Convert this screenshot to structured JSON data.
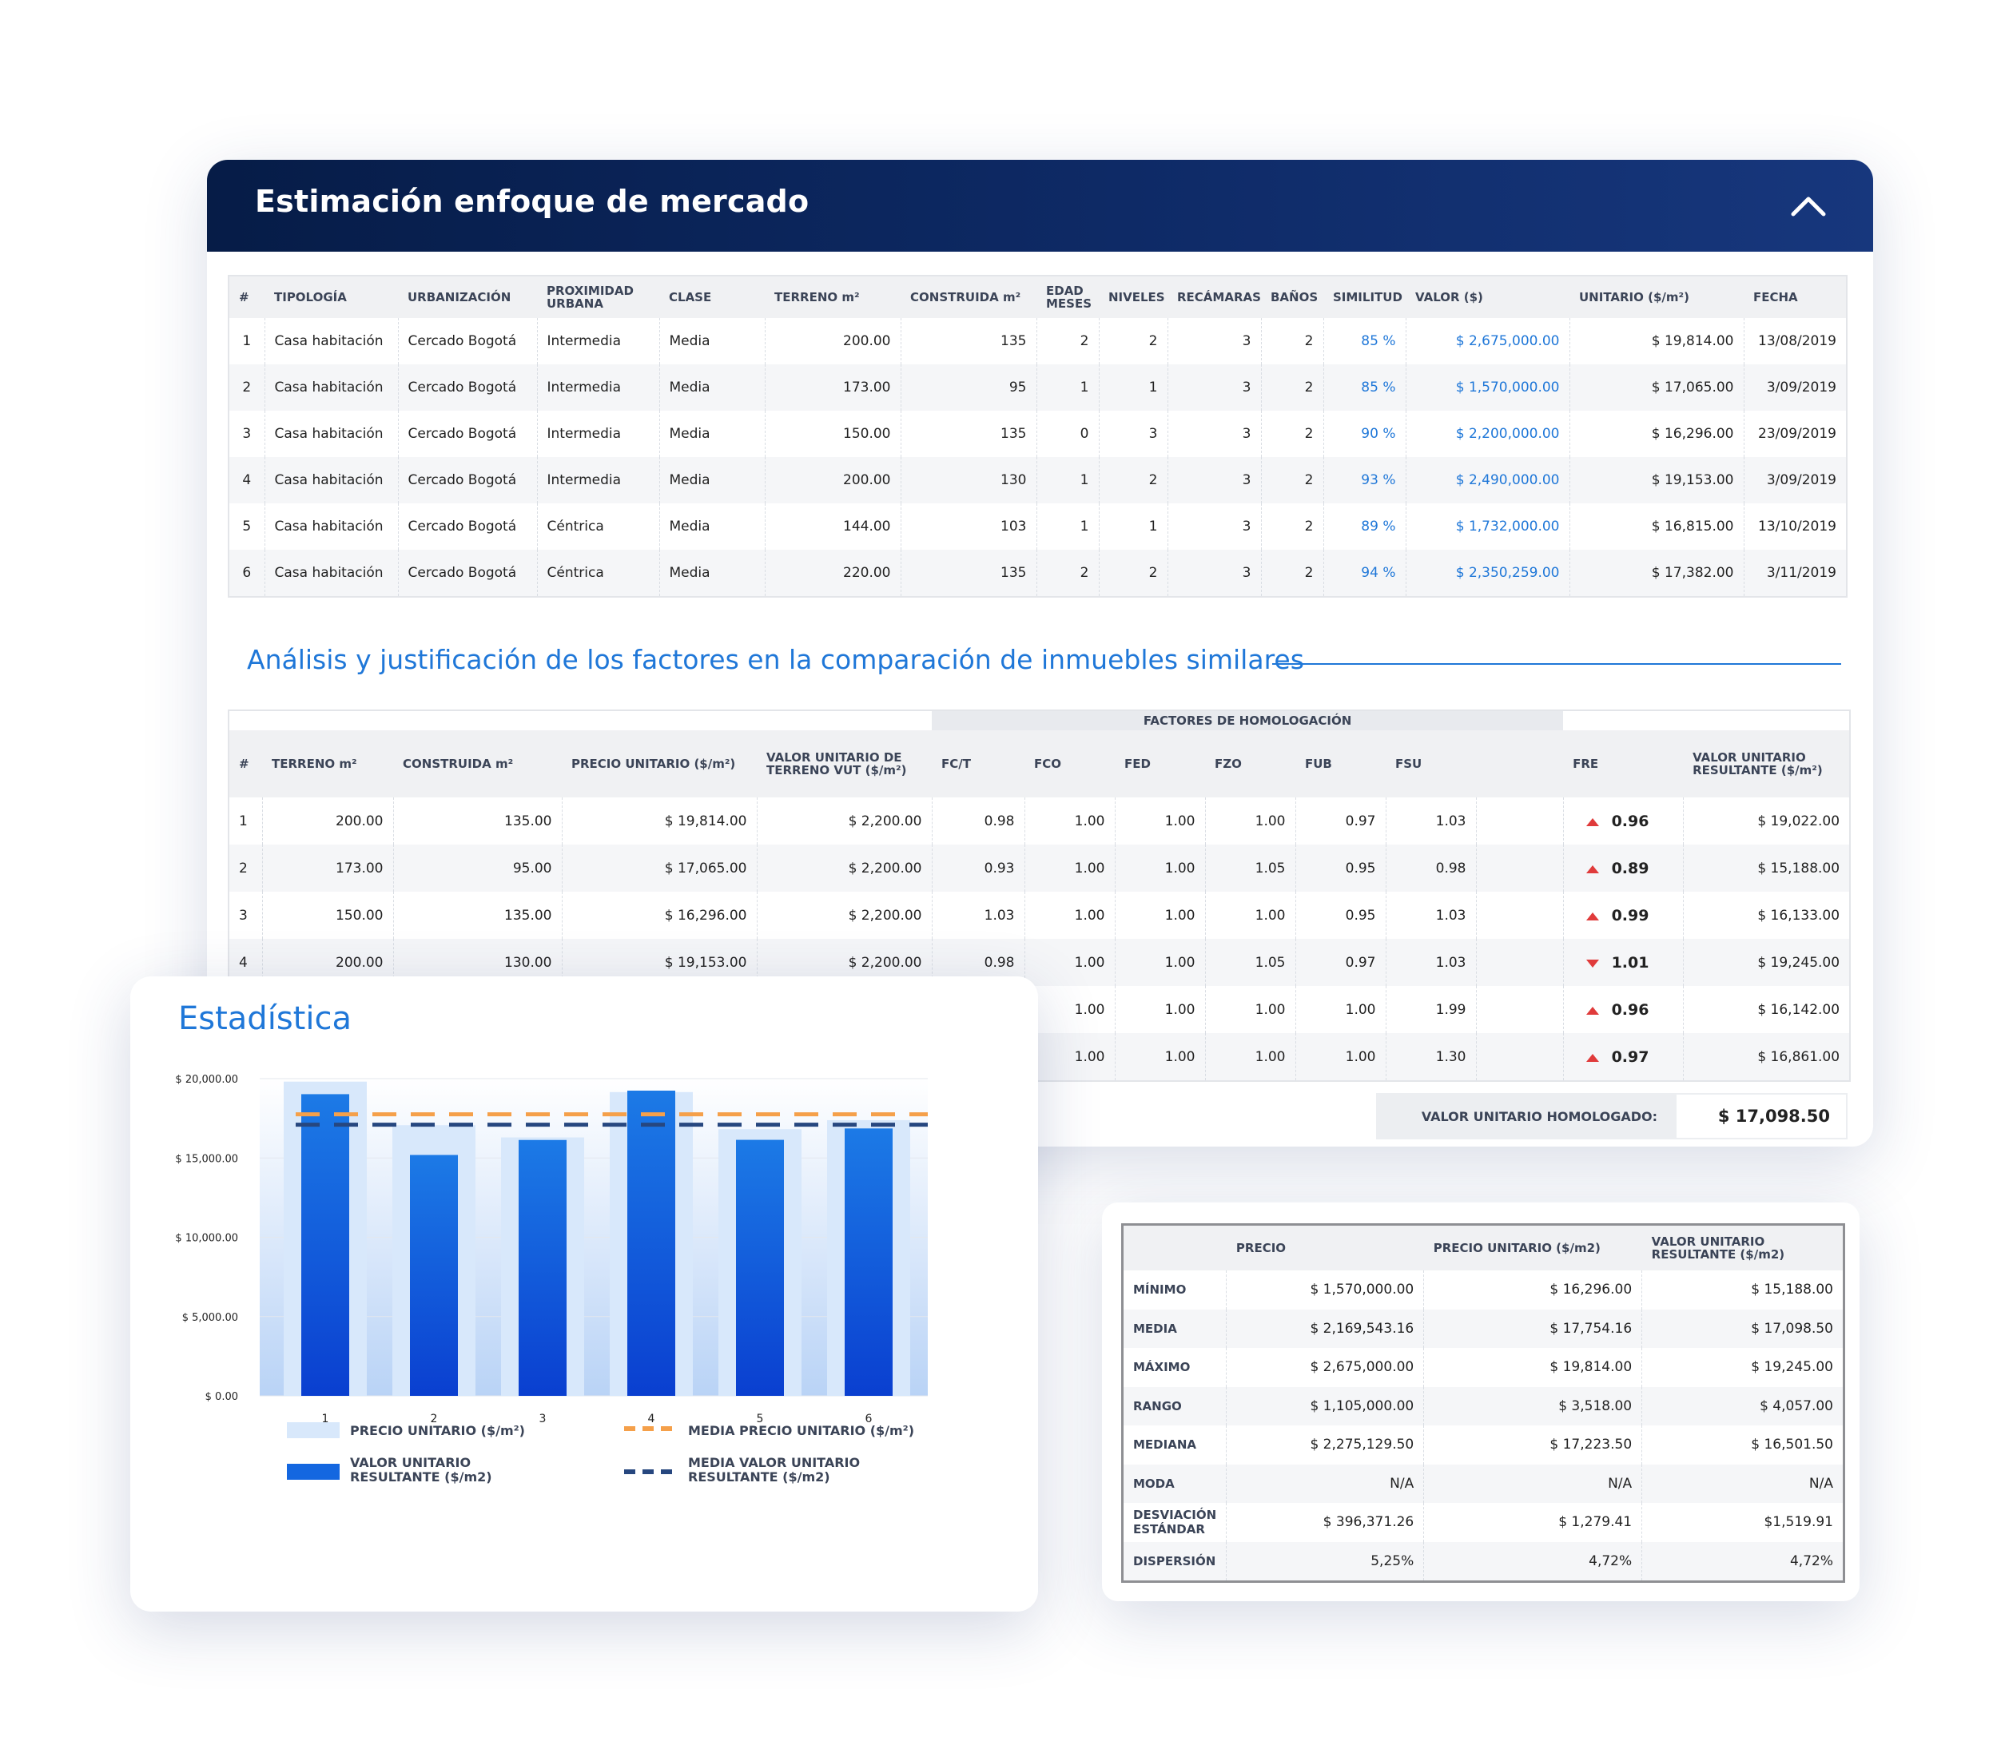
{
  "market": {
    "title": "Estimación enfoque de mercado",
    "columns": [
      "#",
      "TIPOLOGÍA",
      "URBANIZACIÓN",
      "PROXIMIDAD URBANA",
      "CLASE",
      "TERRENO  m²",
      "CONSTRUIDA m²",
      "EDAD MESES",
      "NIVELES",
      "RECÁMARAS",
      "BAÑOS",
      "SIMILITUD",
      "VALOR ($)",
      "UNITARIO ($/m²)",
      "FECHA"
    ],
    "rows": [
      [
        "1",
        "Casa habitación",
        "Cercado Bogotá",
        "Intermedia",
        "Media",
        "200.00",
        "135",
        "2",
        "2",
        "3",
        "2",
        "85 %",
        "$ 2,675,000.00",
        "$ 19,814.00",
        "13/08/2019"
      ],
      [
        "2",
        "Casa habitación",
        "Cercado Bogotá",
        "Intermedia",
        "Media",
        "173.00",
        "95",
        "1",
        "1",
        "3",
        "2",
        "85 %",
        "$ 1,570,000.00",
        "$ 17,065.00",
        "3/09/2019"
      ],
      [
        "3",
        "Casa habitación",
        "Cercado Bogotá",
        "Intermedia",
        "Media",
        "150.00",
        "135",
        "0",
        "3",
        "3",
        "2",
        "90 %",
        "$ 2,200,000.00",
        "$ 16,296.00",
        "23/09/2019"
      ],
      [
        "4",
        "Casa habitación",
        "Cercado Bogotá",
        "Intermedia",
        "Media",
        "200.00",
        "130",
        "1",
        "2",
        "3",
        "2",
        "93 %",
        "$ 2,490,000.00",
        "$ 19,153.00",
        "3/09/2019"
      ],
      [
        "5",
        "Casa habitación",
        "Cercado Bogotá",
        "Céntrica",
        "Media",
        "144.00",
        "103",
        "1",
        "1",
        "3",
        "2",
        "89 %",
        "$ 1,732,000.00",
        "$ 16,815.00",
        "13/10/2019"
      ],
      [
        "6",
        "Casa habitación",
        "Cercado Bogotá",
        "Céntrica",
        "Media",
        "220.00",
        "135",
        "2",
        "2",
        "3",
        "2",
        "94 %",
        "$ 2,350,259.00",
        "$ 17,382.00",
        "3/11/2019"
      ]
    ]
  },
  "analysis": {
    "title": "Análisis y justificación de los factores en la comparación de inmuebles similares",
    "group_header": "FACTORES DE HOMOLOGACIÓN",
    "columns": [
      "#",
      "TERRENO  m²",
      "CONSTRUIDA m²",
      "PRECIO UNITARIO ($/m²)",
      "VALOR UNITARIO DE TERRENO VUT ($/m²)",
      "FC/T",
      "FCO",
      "FED",
      "FZO",
      "FUB",
      "FSU",
      "",
      "FRE",
      "VALOR UNITARIO RESULTANTE ($/m²)"
    ],
    "rows": [
      {
        "cells": [
          "1",
          "200.00",
          "135.00",
          "$ 19,814.00",
          "$ 2,200.00",
          "0.98",
          "1.00",
          "1.00",
          "1.00",
          "0.97",
          "1.03"
        ],
        "fre_dir": "up",
        "fre": "0.96",
        "result": "$ 19,022.00"
      },
      {
        "cells": [
          "2",
          "173.00",
          "95.00",
          "$ 17,065.00",
          "$ 2,200.00",
          "0.93",
          "1.00",
          "1.00",
          "1.05",
          "0.95",
          "0.98"
        ],
        "fre_dir": "up",
        "fre": "0.89",
        "result": "$ 15,188.00"
      },
      {
        "cells": [
          "3",
          "150.00",
          "135.00",
          "$ 16,296.00",
          "$ 2,200.00",
          "1.03",
          "1.00",
          "1.00",
          "1.00",
          "0.95",
          "1.03"
        ],
        "fre_dir": "up",
        "fre": "0.99",
        "result": "$ 16,133.00"
      },
      {
        "cells": [
          "4",
          "200.00",
          "130.00",
          "$ 19,153.00",
          "$ 2,200.00",
          "0.98",
          "1.00",
          "1.00",
          "1.05",
          "0.97",
          "1.03"
        ],
        "fre_dir": "down",
        "fre": "1.01",
        "result": "$ 19,245.00"
      },
      {
        "cells": [
          "",
          "",
          "",
          "",
          "",
          "",
          "1.00",
          "1.00",
          "1.00",
          "1.00",
          "1.99"
        ],
        "fre_dir": "up",
        "fre": "0.96",
        "result": "$ 16,142.00"
      },
      {
        "cells": [
          "",
          "",
          "",
          "",
          "",
          "",
          "1.00",
          "1.00",
          "1.00",
          "1.00",
          "1.30"
        ],
        "fre_dir": "up",
        "fre": "0.97",
        "result": "$ 16,861.00"
      }
    ],
    "homologated_label": "VALOR UNITARIO HOMOLOGADO:",
    "homologated_value": "$ 17,098.50"
  },
  "stats": {
    "title": "Estadística",
    "legend": {
      "price": "PRECIO UNITARIO ($/m²)",
      "mean_price": "MEDIA PRECIO UNITARIO ($/m²)",
      "result": "VALOR UNITARIO RESULTANTE ($/m2)",
      "mean_result": "MEDIA VALOR UNITARIO RESULTANTE ($/m2)"
    }
  },
  "chart_data": {
    "type": "bar",
    "categories": [
      "1",
      "2",
      "3",
      "4",
      "5",
      "6"
    ],
    "series": [
      {
        "name": "PRECIO UNITARIO ($/m²)",
        "values": [
          19814,
          17065,
          16296,
          19153,
          16815,
          17382
        ],
        "color": "#d8e8fb"
      },
      {
        "name": "VALOR UNITARIO RESULTANTE ($/m2)",
        "values": [
          19022,
          15188,
          16133,
          19245,
          16142,
          16861
        ],
        "color": "#1467e0"
      }
    ],
    "reference_lines": [
      {
        "name": "MEDIA PRECIO UNITARIO ($/m²)",
        "value": 17754.16,
        "color": "#f5a04a",
        "style": "dashed"
      },
      {
        "name": "MEDIA VALOR UNITARIO RESULTANTE ($/m2)",
        "value": 17098.5,
        "color": "#27477f",
        "style": "dashed"
      }
    ],
    "yticks": [
      "$ 0.00",
      "$ 5,000.00",
      "$ 10,000.00",
      "$ 15,000.00",
      "$ 20,000.00"
    ],
    "ylim": [
      0,
      20000
    ],
    "grid": true,
    "legend_position": "bottom"
  },
  "summary": {
    "columns": [
      "",
      "PRECIO",
      "PRECIO UNITARIO ($/m2)",
      "VALOR UNITARIO RESULTANTE ($/m2)"
    ],
    "rows": [
      [
        "MÍNIMO",
        "$ 1,570,000.00",
        "$ 16,296.00",
        "$ 15,188.00"
      ],
      [
        "MEDIA",
        "$ 2,169,543.16",
        "$ 17,754.16",
        "$ 17,098.50"
      ],
      [
        "MÁXIMO",
        "$ 2,675,000.00",
        "$ 19,814.00",
        "$ 19,245.00"
      ],
      [
        "RANGO",
        "$ 1,105,000.00",
        "$ 3,518.00",
        "$ 4,057.00"
      ],
      [
        "MEDIANA",
        "$ 2,275,129.50",
        "$ 17,223.50",
        "$ 16,501.50"
      ],
      [
        "MODA",
        "N/A",
        "N/A",
        "N/A"
      ],
      [
        "DESVIACIÓN ESTÁNDAR",
        "$ 396,371.26",
        "$ 1,279.41",
        "$1,519.91"
      ],
      [
        "DISPERSIÓN",
        "5,25%",
        "4,72%",
        "4,72%"
      ]
    ]
  }
}
